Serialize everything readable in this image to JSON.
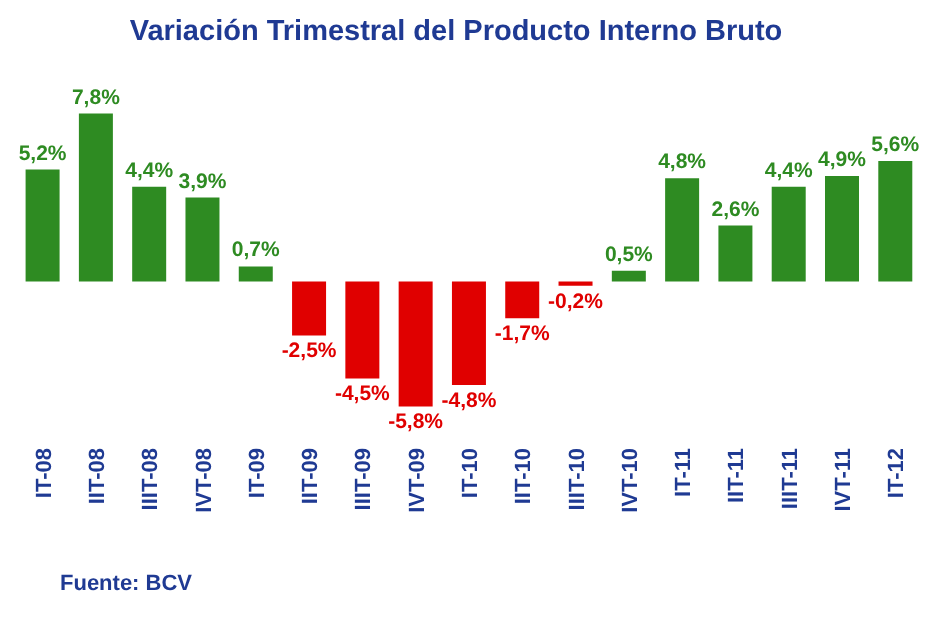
{
  "chart_data": {
    "type": "bar",
    "title": "Variación Trimestral del Producto Interno Bruto",
    "categories": [
      "IT-08",
      "IIT-08",
      "IIIT-08",
      "IVT-08",
      "IT-09",
      "IIT-09",
      "IIIT-09",
      "IVT-09",
      "IT-10",
      "IIT-10",
      "IIIT-10",
      "IVT-10",
      "IT-11",
      "IIT-11",
      "IIIT-11",
      "IVT-11",
      "IT-12"
    ],
    "values": [
      5.2,
      7.8,
      4.4,
      3.9,
      0.7,
      -2.5,
      -4.5,
      -5.8,
      -4.8,
      -1.7,
      -0.2,
      0.5,
      4.8,
      2.6,
      4.4,
      4.9,
      5.6
    ],
    "colors": [
      "#2e8b22",
      "#2e8b22",
      "#2e8b22",
      "#2e8b22",
      "#2e8b22",
      "#e00000",
      "#e00000",
      "#e00000",
      "#e00000",
      "#e00000",
      "#e00000",
      "#2e8b22",
      "#2e8b22",
      "#2e8b22",
      "#2e8b22",
      "#2e8b22",
      "#2e8b22"
    ],
    "value_labels": [
      "5,2%",
      "7,8%",
      "4,4%",
      "3,9%",
      "0,7%",
      "-2,5%",
      "-4,5%",
      "-5,8%",
      "-4,8%",
      "-1,7%",
      "-0,2%",
      "0,5%",
      "4,8%",
      "2,6%",
      "4,4%",
      "4,9%",
      "5,6%"
    ],
    "annotations": [
      "Fuente: BCV"
    ],
    "grid": false,
    "legend": false
  }
}
